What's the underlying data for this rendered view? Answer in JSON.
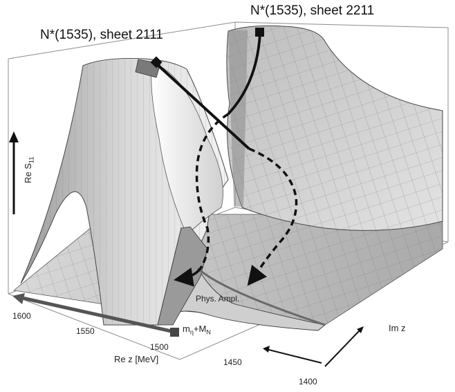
{
  "labels": {
    "sheet_2111": "N*(1535), sheet 2111",
    "sheet_2211": "N*(1535), sheet 2211",
    "phys_ampl": "Phys. Ampl.",
    "re_s11_base": "Re S",
    "re_s11_sub": "11",
    "threshold_m": "m",
    "threshold_eta": "η",
    "threshold_plus": "+M",
    "threshold_N": "N",
    "re_z_axis": "Re z [MeV]",
    "im_z_axis": "Im z"
  },
  "re_z_ticks": [
    "1600",
    "1550",
    "1500",
    "1450",
    "1400"
  ],
  "colors": {
    "surface_light": "#ededed",
    "surface_mid": "#c8c8c8",
    "surface_dark": "#8a8a8a",
    "path": "#111111",
    "axis_arrow": "#555555",
    "threshold_marker": "#444444"
  }
}
